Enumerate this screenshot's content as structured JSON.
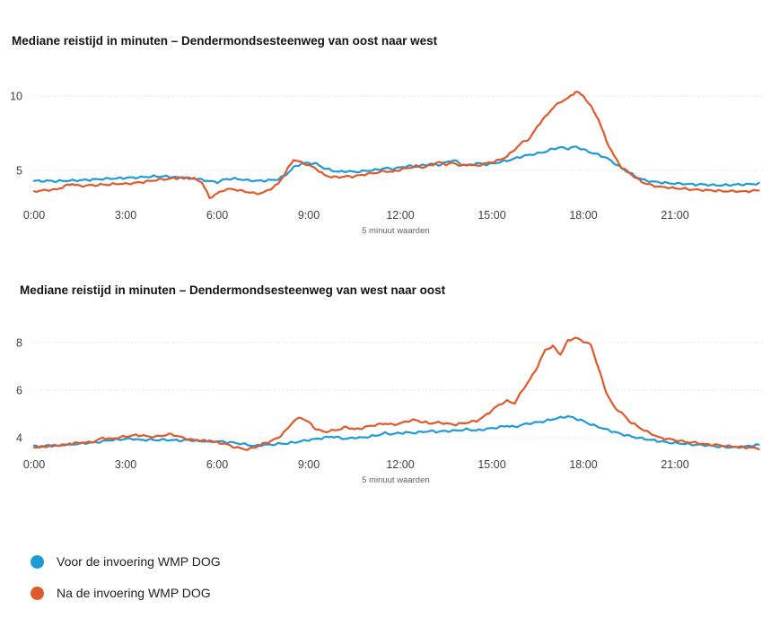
{
  "page": {
    "background": "#ffffff"
  },
  "colors": {
    "before": "#1e9bd7",
    "after": "#e0592b",
    "grid": "#d9d9d9",
    "tick": "#3f3f3f",
    "sublabel": "#5f5f5f",
    "title": "#141414"
  },
  "legend": {
    "items": [
      {
        "label": "Voor de invoering WMP DOG",
        "color_key": "before"
      },
      {
        "label": "Na de invoering WMP DOG",
        "color_key": "after"
      }
    ]
  },
  "chart_data": [
    {
      "type": "line",
      "title": "Mediane reistijd in minuten – Dendermondsesteenweg van oost naar west",
      "xlabel": "5 minuut waarden",
      "ylabel": "",
      "x_tick_labels": [
        "0:00",
        "3:00",
        "6:00",
        "9:00",
        "12:00",
        "15:00",
        "18:00",
        "21:00"
      ],
      "x_tick_hours": [
        0,
        3,
        6,
        9,
        12,
        15,
        18,
        21
      ],
      "x_range_hours": [
        0,
        23.75
      ],
      "sample_interval_minutes": 15,
      "ylim": [
        2.8,
        11.2
      ],
      "gridline_values": [
        5,
        10
      ],
      "grid": true,
      "series": [
        {
          "name": "Voor de invoering WMP DOG",
          "values": [
            4.3,
            4.28,
            4.3,
            4.27,
            4.3,
            4.33,
            4.34,
            4.36,
            4.4,
            4.42,
            4.45,
            4.47,
            4.5,
            4.52,
            4.55,
            4.57,
            4.6,
            4.6,
            4.56,
            4.53,
            4.5,
            4.45,
            4.38,
            4.28,
            4.2,
            4.4,
            4.45,
            4.4,
            4.35,
            4.3,
            4.3,
            4.35,
            4.4,
            4.7,
            5.2,
            5.45,
            5.5,
            5.45,
            5.15,
            5.0,
            4.9,
            4.95,
            4.9,
            4.95,
            5.0,
            5.05,
            5.15,
            5.1,
            5.2,
            5.3,
            5.25,
            5.35,
            5.45,
            5.35,
            5.55,
            5.7,
            5.4,
            5.35,
            5.5,
            5.4,
            5.45,
            5.55,
            5.65,
            5.8,
            5.95,
            6.05,
            6.15,
            6.25,
            6.45,
            6.55,
            6.45,
            6.6,
            6.4,
            6.2,
            6.05,
            5.85,
            5.5,
            5.15,
            4.85,
            4.55,
            4.35,
            4.25,
            4.2,
            4.15,
            4.12,
            4.1,
            4.08,
            4.05,
            4.05,
            4.02,
            4.0,
            4.02,
            4.05,
            4.05,
            4.08,
            4.12
          ]
        },
        {
          "name": "Na de invoering WMP DOG",
          "values": [
            3.6,
            3.65,
            3.68,
            3.72,
            3.95,
            4.1,
            3.95,
            4.0,
            4.0,
            4.05,
            4.05,
            4.1,
            4.1,
            4.15,
            4.2,
            4.28,
            4.35,
            4.4,
            4.45,
            4.5,
            4.5,
            4.45,
            4.2,
            3.15,
            3.45,
            3.7,
            3.75,
            3.65,
            3.55,
            3.45,
            3.5,
            3.75,
            4.1,
            4.9,
            5.72,
            5.55,
            5.35,
            5.1,
            4.7,
            4.55,
            4.55,
            4.6,
            4.6,
            4.7,
            4.8,
            4.85,
            4.95,
            4.9,
            5.05,
            5.15,
            5.3,
            5.2,
            5.35,
            5.55,
            5.4,
            5.5,
            5.3,
            5.4,
            5.3,
            5.45,
            5.55,
            5.7,
            5.95,
            6.4,
            6.9,
            7.15,
            8.0,
            8.6,
            9.2,
            9.6,
            9.85,
            10.3,
            10.0,
            9.3,
            8.4,
            7.0,
            6.0,
            5.2,
            4.85,
            4.45,
            4.15,
            4.0,
            3.9,
            3.85,
            3.8,
            3.78,
            3.72,
            3.7,
            3.68,
            3.65,
            3.62,
            3.6,
            3.6,
            3.58,
            3.62,
            3.66
          ]
        }
      ]
    },
    {
      "type": "line",
      "title": "Mediane reistijd in minuten – Dendermondsesteenweg van west naar oost",
      "xlabel": "5 minuut waarden",
      "ylabel": "",
      "x_tick_labels": [
        "0:00",
        "3:00",
        "6:00",
        "9:00",
        "12:00",
        "15:00",
        "18:00",
        "21:00"
      ],
      "x_tick_hours": [
        0,
        3,
        6,
        9,
        12,
        15,
        18,
        21
      ],
      "x_range_hours": [
        0,
        23.75
      ],
      "sample_interval_minutes": 15,
      "ylim": [
        3.3,
        8.6
      ],
      "gridline_values": [
        4,
        6,
        8
      ],
      "grid": true,
      "series": [
        {
          "name": "Voor de invoering WMP DOG",
          "values": [
            3.65,
            3.62,
            3.68,
            3.65,
            3.7,
            3.72,
            3.75,
            3.78,
            3.8,
            3.85,
            3.9,
            3.92,
            3.95,
            3.95,
            3.9,
            3.92,
            3.9,
            3.92,
            3.9,
            3.88,
            3.9,
            3.88,
            3.85,
            3.86,
            3.85,
            3.82,
            3.8,
            3.75,
            3.7,
            3.65,
            3.7,
            3.7,
            3.75,
            3.75,
            3.8,
            3.85,
            3.9,
            3.95,
            4.0,
            4.05,
            4.0,
            3.95,
            4.0,
            4.0,
            4.05,
            4.1,
            4.2,
            4.15,
            4.2,
            4.22,
            4.2,
            4.25,
            4.28,
            4.25,
            4.28,
            4.3,
            4.32,
            4.35,
            4.3,
            4.35,
            4.4,
            4.45,
            4.5,
            4.45,
            4.55,
            4.6,
            4.65,
            4.7,
            4.78,
            4.85,
            4.9,
            4.8,
            4.7,
            4.55,
            4.45,
            4.35,
            4.25,
            4.15,
            4.08,
            4.0,
            3.95,
            3.9,
            3.85,
            3.8,
            3.78,
            3.75,
            3.72,
            3.7,
            3.68,
            3.65,
            3.62,
            3.6,
            3.6,
            3.62,
            3.66,
            3.7
          ]
        },
        {
          "name": "Na de invoering WMP DOG",
          "values": [
            3.6,
            3.62,
            3.65,
            3.68,
            3.7,
            3.74,
            3.8,
            3.8,
            3.85,
            4.0,
            3.95,
            4.0,
            4.05,
            4.1,
            4.1,
            4.05,
            4.05,
            4.1,
            4.15,
            4.05,
            3.95,
            3.9,
            3.88,
            3.85,
            3.8,
            3.75,
            3.62,
            3.56,
            3.5,
            3.6,
            3.75,
            3.85,
            4.0,
            4.3,
            4.7,
            4.85,
            4.65,
            4.35,
            4.25,
            4.3,
            4.35,
            4.45,
            4.35,
            4.4,
            4.5,
            4.55,
            4.6,
            4.55,
            4.6,
            4.7,
            4.75,
            4.65,
            4.6,
            4.65,
            4.6,
            4.55,
            4.6,
            4.65,
            4.7,
            4.9,
            5.15,
            5.4,
            5.55,
            5.45,
            6.0,
            6.45,
            7.0,
            7.7,
            7.85,
            7.5,
            8.1,
            8.2,
            8.05,
            7.9,
            6.9,
            5.9,
            5.3,
            5.05,
            4.7,
            4.5,
            4.3,
            4.15,
            4.0,
            3.95,
            3.9,
            3.85,
            3.8,
            3.78,
            3.72,
            3.7,
            3.68,
            3.65,
            3.62,
            3.6,
            3.58,
            3.55
          ]
        }
      ]
    }
  ]
}
